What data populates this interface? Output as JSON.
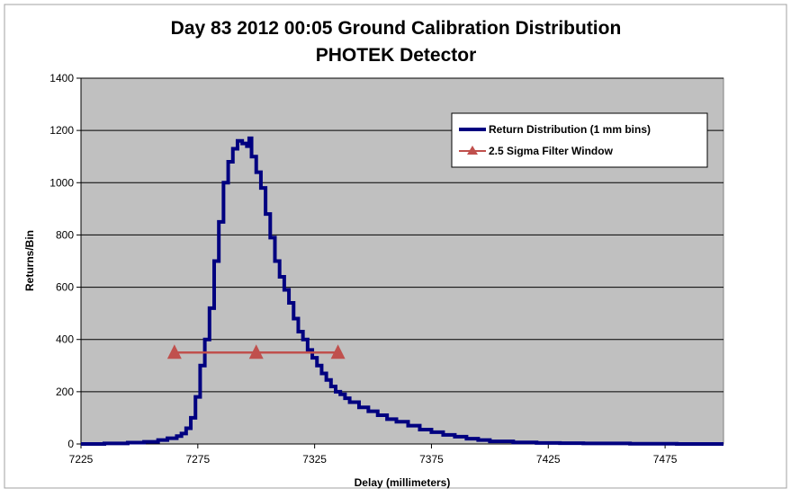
{
  "chart_data": {
    "type": "line",
    "title": "Day 83 2012 00:05 Ground Calibration Distribution",
    "subtitle": "PHOTEK Detector",
    "xlabel": "Delay (millimeters)",
    "ylabel": "Returns/Bin",
    "xlim": [
      7225,
      7500
    ],
    "ylim": [
      0,
      1400
    ],
    "x_ticks": [
      "7225",
      "7275",
      "7325",
      "7375",
      "7425",
      "7475"
    ],
    "y_ticks": [
      "0",
      "200",
      "400",
      "600",
      "800",
      "1000",
      "1200",
      "1400"
    ],
    "grid": true,
    "legend_position": "top-right",
    "colors": {
      "plot_bg": "#c0c0c0",
      "distribution": "#000080",
      "filter": "#c0504d"
    },
    "series": [
      {
        "name": "Return Distribution (1 mm bins)",
        "style": "step",
        "x": [
          7225,
          7235,
          7245,
          7252,
          7258,
          7262,
          7266,
          7268,
          7270,
          7272,
          7274,
          7276,
          7278,
          7280,
          7282,
          7284,
          7286,
          7288,
          7290,
          7292,
          7294,
          7296,
          7297,
          7298,
          7300,
          7302,
          7304,
          7306,
          7308,
          7310,
          7312,
          7314,
          7316,
          7318,
          7320,
          7322,
          7324,
          7326,
          7328,
          7330,
          7332,
          7334,
          7336,
          7338,
          7340,
          7344,
          7348,
          7352,
          7356,
          7360,
          7365,
          7370,
          7375,
          7380,
          7385,
          7390,
          7395,
          7400,
          7410,
          7420,
          7430,
          7440,
          7460,
          7480,
          7498
        ],
        "values": [
          0,
          2,
          5,
          8,
          15,
          22,
          30,
          40,
          60,
          100,
          180,
          300,
          400,
          520,
          700,
          850,
          1000,
          1080,
          1130,
          1160,
          1150,
          1140,
          1170,
          1100,
          1040,
          980,
          880,
          790,
          700,
          640,
          590,
          540,
          480,
          430,
          400,
          360,
          330,
          300,
          270,
          245,
          220,
          200,
          190,
          175,
          160,
          140,
          125,
          110,
          95,
          85,
          70,
          55,
          45,
          35,
          28,
          20,
          15,
          10,
          6,
          4,
          3,
          2,
          1,
          0,
          0
        ]
      },
      {
        "name": "2.5 Sigma Filter Window",
        "style": "line-triangle",
        "x": [
          7265,
          7300,
          7335
        ],
        "values": [
          350,
          350,
          350
        ]
      }
    ]
  }
}
